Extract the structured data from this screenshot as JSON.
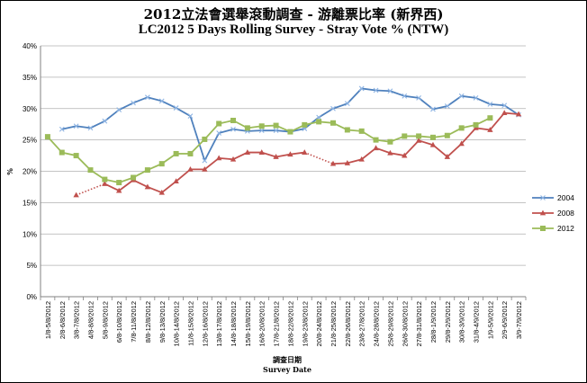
{
  "chart_data": {
    "type": "line",
    "title": "2012立法會選舉滾動調查 - 游離票比率 (新界西)",
    "subtitle": "LC2012 5 Days Rolling Survey - Stray Vote % (NTW)",
    "xlabel_zh": "調查日期",
    "xlabel": "Survey Date",
    "ylabel": "%",
    "ylim": [
      0,
      40
    ],
    "y_ticks": [
      "0%",
      "5%",
      "10%",
      "15%",
      "20%",
      "25%",
      "30%",
      "35%",
      "40%"
    ],
    "grid": "horizontal",
    "legend_position": "right",
    "categories": [
      "1/8-5/8/2012",
      "2/8-6/8/2012",
      "3/8-7/8/2012",
      "4/8-8/8/2012",
      "5/8-9/8/2012",
      "6/8-10/8/2012",
      "7/8-11/8/2012",
      "8/8-12/8/2012",
      "9/8-13/8/2012",
      "10/8-14/8/2012",
      "11/8-15/8/2012",
      "12/8-16/8/2012",
      "13/8-17/8/2012",
      "14/8-18/8/2012",
      "15/8-19/8/2012",
      "16/8-20/8/2012",
      "17/8-21/8/2012",
      "18/8-22/8/2012",
      "19/8-23/8/2012",
      "20/8-24/8/2012",
      "21/8-25/8/2012",
      "22/8-26/8/2012",
      "23/8-27/8/2012",
      "24/8-28/8/2012",
      "25/8-29/8/2012",
      "26/8-30/8/2012",
      "27/8-31/8/2012",
      "28/8-1/9/2012",
      "29/8-2/9/2012",
      "30/8-3/9/2012",
      "31/8-4/9/2012",
      "1/9-5/9/2012",
      "2/9-6/9/2012",
      "3/9-7/9/2012"
    ],
    "series": [
      {
        "name": "2004",
        "color": "#4f81bd",
        "marker": "x",
        "values": [
          null,
          26.7,
          27.2,
          26.9,
          28.0,
          29.8,
          30.9,
          31.8,
          31.2,
          30.1,
          28.8,
          21.7,
          26.1,
          26.7,
          26.4,
          26.5,
          26.5,
          26.3,
          26.8,
          28.6,
          30.0,
          30.8,
          33.2,
          32.9,
          32.8,
          32.0,
          31.7,
          29.9,
          30.4,
          32.0,
          31.7,
          30.7,
          30.5,
          29.0
        ]
      },
      {
        "name": "2008",
        "color": "#c0504d",
        "marker": "triangle",
        "dotted_gaps": true,
        "values": [
          null,
          null,
          16.2,
          null,
          18.0,
          16.9,
          18.6,
          17.5,
          16.6,
          18.4,
          20.3,
          20.3,
          22.1,
          21.9,
          23.0,
          23.0,
          22.3,
          22.7,
          23.0,
          null,
          21.2,
          21.3,
          21.9,
          23.7,
          22.9,
          22.5,
          24.9,
          24.2,
          22.3,
          24.4,
          26.9,
          26.6,
          29.3,
          29.1
        ]
      },
      {
        "name": "2012",
        "color": "#9bbb59",
        "marker": "square",
        "values": [
          25.5,
          23.0,
          22.5,
          20.2,
          18.7,
          18.2,
          19.0,
          20.2,
          21.2,
          22.8,
          22.8,
          25.1,
          27.6,
          28.1,
          26.9,
          27.2,
          27.3,
          26.3,
          27.4,
          27.9,
          27.7,
          26.6,
          26.4,
          25.0,
          24.7,
          25.6,
          25.6,
          25.4,
          25.7,
          26.9,
          27.4,
          28.5,
          null,
          null
        ]
      }
    ]
  }
}
